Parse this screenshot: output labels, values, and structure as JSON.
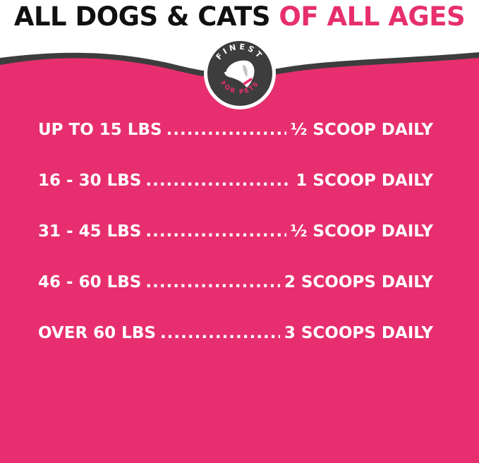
{
  "title": {
    "part1": "ALL DOGS & CATS",
    "part2": "OF ALL AGES"
  },
  "logo": {
    "text_top": "FINEST",
    "text_bottom": "FOR PETS",
    "icon": "dog-head-icon"
  },
  "colors": {
    "background": "#e72f6f",
    "band": "#3d3d3d",
    "title": "#111111"
  },
  "rows": [
    {
      "weight": "UP TO 15 LBS",
      "amount": "½ SCOOP DAILY"
    },
    {
      "weight": "16 - 30 LBS",
      "amount": "1 SCOOP DAILY"
    },
    {
      "weight": "31 - 45 LBS",
      "amount": "½ SCOOP DAILY"
    },
    {
      "weight": "46 - 60 LBS",
      "amount": "2 SCOOPS DAILY"
    },
    {
      "weight": "OVER 60 LBS",
      "amount": "3 SCOOPS DAILY"
    }
  ]
}
